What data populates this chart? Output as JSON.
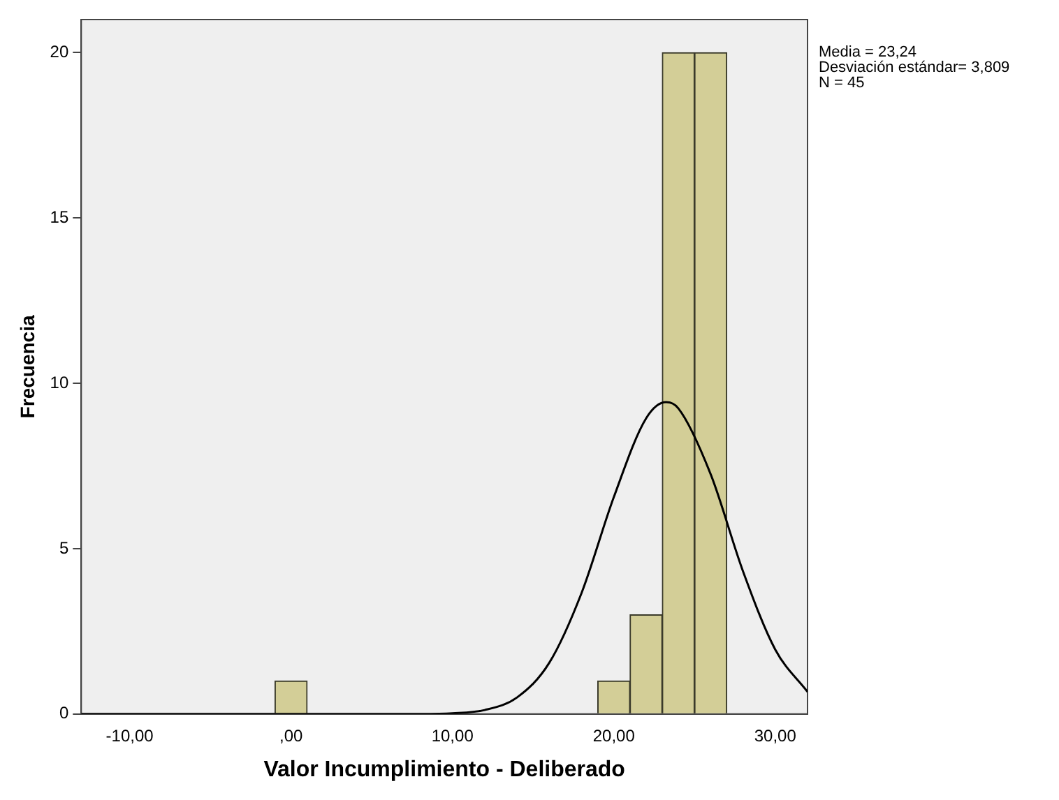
{
  "chart_data": {
    "type": "histogram",
    "xlabel": "Valor Incumplimiento - Deliberado",
    "ylabel": "Frecuencia",
    "bins": [
      -1,
      1,
      3,
      5,
      7,
      9,
      11,
      13,
      15,
      17,
      19,
      21,
      23,
      25,
      27
    ],
    "values": [
      1,
      0,
      0,
      0,
      0,
      0,
      0,
      0,
      0,
      0,
      1,
      3,
      20,
      20
    ],
    "color": "#d3ce97",
    "series": [
      {
        "type": "line",
        "color": "#000000",
        "x": [
          -13,
          0,
          8,
          10,
          12,
          14,
          16,
          18,
          20,
          22,
          23.24,
          24,
          26,
          28,
          30,
          32
        ],
        "values": [
          0,
          0,
          0,
          0.02,
          0.12,
          0.5,
          1.55,
          3.66,
          6.56,
          8.94,
          9.43,
          9.24,
          7.25,
          4.32,
          1.95,
          0.67
        ]
      }
    ],
    "xlim": [
      -13,
      32
    ],
    "ylim": [
      0,
      21
    ],
    "xticks": [
      {
        "value": -10,
        "label": "-10,00"
      },
      {
        "value": 0,
        "label": ",00"
      },
      {
        "value": 10,
        "label": "10,00"
      },
      {
        "value": 20,
        "label": "20,00"
      },
      {
        "value": 30,
        "label": "30,00"
      }
    ],
    "yticks": [
      0,
      5,
      10,
      15,
      20
    ],
    "grid": false,
    "legend": false,
    "marker": "none",
    "line_style": "solid",
    "annotations": [
      "Media = 23,24",
      "Desviación estándar= 3,809",
      "N = 45"
    ]
  }
}
